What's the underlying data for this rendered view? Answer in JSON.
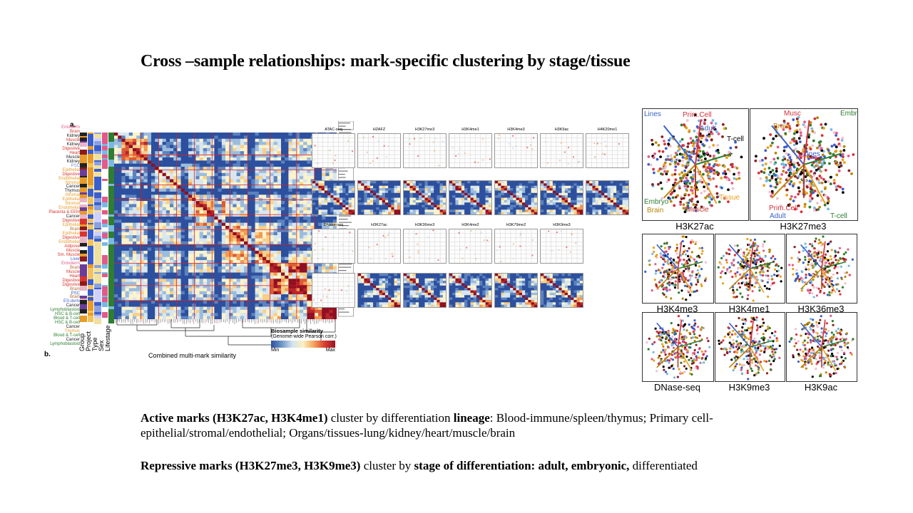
{
  "slide": {
    "title": "Cross –sample relationships: mark-specific clustering by stage/tissue"
  },
  "figure_left": {
    "panel_a": "a.",
    "panel_b": "b.",
    "row_labels": [
      "Entoderm",
      "Brain",
      "Kidney",
      "Muscle",
      "Kidney",
      "Digestive",
      "Heart",
      "Muscle",
      "Kidney",
      "PSC",
      "Epithelial",
      "Digestive",
      "Endothelial",
      "Stromal",
      "Cancer",
      "Thymus",
      "Stromal",
      "Epithelial",
      "Stromal",
      "Endothelial",
      "Placenta & EEM",
      "Cancer",
      "Digestive",
      "Epithelial",
      "Brain",
      "Epithelial",
      "Digestive",
      "Endothelial",
      "Adipose",
      "Muscle",
      "Sm. Muscle",
      "Liver",
      "Entoderm",
      "Brain",
      "Muscle",
      "Heart",
      "Digestive",
      "Digestive",
      "Brain",
      "PSC",
      "Brain",
      "ES-deriv",
      "Cancer",
      "Lymphoblastoid",
      "HSC & B-cell",
      "Blood & T-cell",
      "HSC & B-cell",
      "Cancer",
      "Thymus",
      "Blood & T-cell",
      "Cancer",
      "Lymphoblastoid"
    ],
    "annotation_columns": [
      "Group",
      "Project",
      "Type",
      "Sex",
      "Lifestage"
    ],
    "dendrogram_label": "Combined multi-mark similarity",
    "legend_title": "Biosample similarity",
    "legend_subtitle": "(Genome-wide Pearson corr.)",
    "legend_min": "Min",
    "legend_max": "Max"
  },
  "mini_heatmaps": {
    "row1": [
      "ATAC-seq",
      "H2AFZ",
      "H3K27me3",
      "H3K4me1",
      "H3K4me3",
      "H3K9ac",
      "H4K20me1"
    ],
    "row3": [
      "DNase-seq",
      "H3K27ac",
      "H3K36me3",
      "H3K4me2",
      "H3K79me2",
      "H3K9me3"
    ]
  },
  "scatter": {
    "panels": [
      {
        "label": "H3K27ac"
      },
      {
        "label": "H3K27me3"
      },
      {
        "label": "H3K4me3"
      },
      {
        "label": "H3K4me1"
      },
      {
        "label": "H3K36me3"
      },
      {
        "label": "DNase-seq"
      },
      {
        "label": "H3K9me3"
      },
      {
        "label": "H3K9ac"
      }
    ],
    "h3k27ac_tags": {
      "lines": "Lines",
      "prim_cell": "Prim.Cell",
      "adult": "Adult",
      "tcell": "T-cell",
      "tissue": "Tissue",
      "embryo": "Embryo",
      "brain": "Brain",
      "muscle": "Muscle"
    },
    "h3k27me3_tags": {
      "musc": "Musc",
      "embr": "Embr",
      "brain": "Brain",
      "lines": "Lines",
      "prim_cell": "Prim.Cell",
      "adult": "Adult",
      "tcell": "T-cell"
    },
    "colors": {
      "lines": "#3a5fcd",
      "prim_cell": "#d6303a",
      "adult": "#3a5fcd",
      "tcell": "#2e7d32",
      "tissue": "#e8a21c",
      "embryo": "#2e7d32",
      "brain": "#b8860b",
      "muscle": "#c0392b",
      "musc": "#d6303a",
      "embr": "#2e7d32"
    }
  },
  "text": {
    "p1_a": "Active marks  (H3K27ac, H3K4me1)",
    "p1_b": " cluster by differentiation ",
    "p1_c": "lineage",
    "p1_d": ": Blood-immune/spleen/thymus; Primary cell-epithelial/stromal/endothelial;  Organs/tissues-lung/kidney/heart/muscle/brain",
    "p2_a": "Repressive marks  (H3K27me3, H3K9me3)",
    "p2_b": " cluster by ",
    "p2_c": "stage of differentiation:  adult,  embryonic,",
    "p2_d": " differentiated"
  }
}
